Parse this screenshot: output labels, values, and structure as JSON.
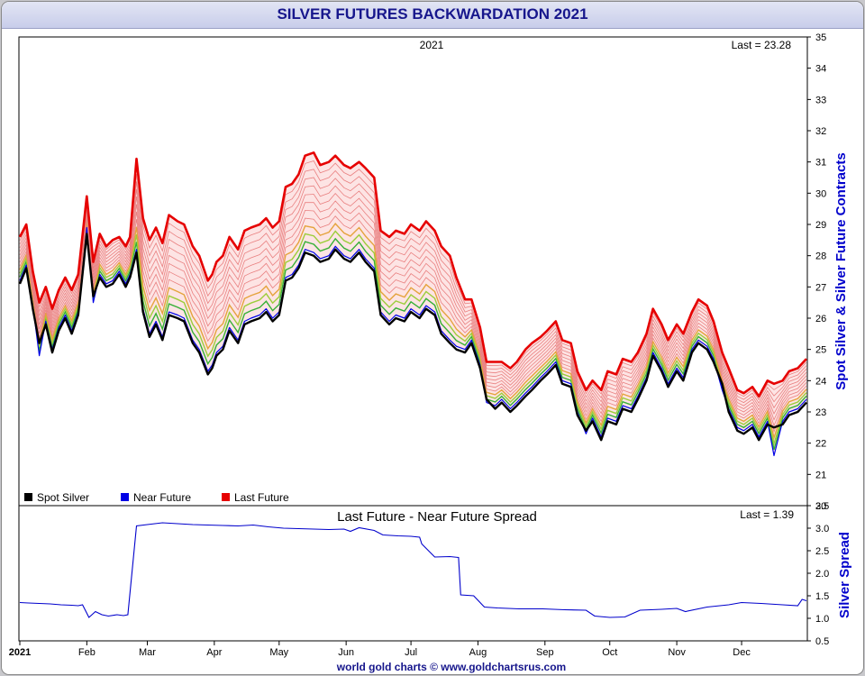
{
  "title": "SILVER FUTURES BACKWARDATION 2021",
  "footer": "world gold charts © www.goldchartsrus.com",
  "colors": {
    "spot": "#000000",
    "near": "#0000e6",
    "last": "#e60000",
    "band": "#f2a8a8",
    "mid": "#e98080",
    "spread": "#0000cc",
    "title": "#16168c",
    "ylabel": "#0000cc"
  },
  "chart_data": [
    {
      "type": "line",
      "subtitle": "2021",
      "annotation": "Last = 23.28",
      "ylabel": "Spot Silver & Silver Future Contracts",
      "ylim": [
        20,
        35
      ],
      "yticks": [
        20,
        21,
        22,
        23,
        24,
        25,
        26,
        27,
        28,
        29,
        30,
        31,
        32,
        33,
        34,
        35
      ],
      "legend_position": "bottom-left",
      "x_date_range": [
        "2021-01-01",
        "2021-12-31"
      ],
      "series": [
        {
          "name": "Spot Silver",
          "x": [
            "2021-01-01",
            "2021-01-04",
            "2021-01-07",
            "2021-01-10",
            "2021-01-13",
            "2021-01-16",
            "2021-01-19",
            "2021-01-22",
            "2021-01-25",
            "2021-01-28",
            "2021-02-01",
            "2021-02-04",
            "2021-02-07",
            "2021-02-10",
            "2021-02-13",
            "2021-02-16",
            "2021-02-19",
            "2021-02-21",
            "2021-02-24",
            "2021-02-27",
            "2021-03-02",
            "2021-03-05",
            "2021-03-08",
            "2021-03-11",
            "2021-03-15",
            "2021-03-18",
            "2021-03-22",
            "2021-03-25",
            "2021-03-29",
            "2021-03-31",
            "2021-04-02",
            "2021-04-05",
            "2021-04-08",
            "2021-04-12",
            "2021-04-15",
            "2021-04-18",
            "2021-04-22",
            "2021-04-25",
            "2021-04-28",
            "2021-05-01",
            "2021-05-04",
            "2021-05-07",
            "2021-05-10",
            "2021-05-13",
            "2021-05-17",
            "2021-05-20",
            "2021-05-24",
            "2021-05-27",
            "2021-05-31",
            "2021-06-03",
            "2021-06-07",
            "2021-06-10",
            "2021-06-14",
            "2021-06-17",
            "2021-06-21",
            "2021-06-24",
            "2021-06-28",
            "2021-07-01",
            "2021-07-05",
            "2021-07-08",
            "2021-07-12",
            "2021-07-15",
            "2021-07-19",
            "2021-07-22",
            "2021-07-26",
            "2021-07-29",
            "2021-08-02",
            "2021-08-05",
            "2021-08-09",
            "2021-08-12",
            "2021-08-16",
            "2021-08-19",
            "2021-08-23",
            "2021-08-26",
            "2021-08-30",
            "2021-09-02",
            "2021-09-06",
            "2021-09-09",
            "2021-09-13",
            "2021-09-16",
            "2021-09-20",
            "2021-09-23",
            "2021-09-27",
            "2021-09-30",
            "2021-10-04",
            "2021-10-07",
            "2021-10-11",
            "2021-10-14",
            "2021-10-18",
            "2021-10-21",
            "2021-10-25",
            "2021-10-28",
            "2021-11-01",
            "2021-11-04",
            "2021-11-08",
            "2021-11-11",
            "2021-11-15",
            "2021-11-18",
            "2021-11-22",
            "2021-11-25",
            "2021-11-29",
            "2021-12-02",
            "2021-12-06",
            "2021-12-09",
            "2021-12-13",
            "2021-12-16",
            "2021-12-20",
            "2021-12-23",
            "2021-12-27",
            "2021-12-31"
          ],
          "values": [
            27.1,
            27.6,
            26.3,
            25.2,
            25.8,
            24.9,
            25.6,
            26.0,
            25.5,
            26.1,
            28.7,
            26.7,
            27.3,
            27.0,
            27.1,
            27.4,
            27.0,
            27.3,
            28.1,
            26.2,
            25.4,
            25.8,
            25.3,
            26.1,
            26.0,
            25.9,
            25.2,
            24.9,
            24.2,
            24.4,
            24.8,
            25.0,
            25.6,
            25.2,
            25.8,
            25.9,
            26.0,
            26.2,
            25.9,
            26.1,
            27.2,
            27.3,
            27.6,
            28.1,
            28.0,
            27.8,
            27.9,
            28.2,
            27.9,
            27.8,
            28.1,
            27.8,
            27.5,
            26.1,
            25.8,
            26.0,
            25.9,
            26.2,
            26.0,
            26.3,
            26.1,
            25.5,
            25.2,
            25.0,
            24.9,
            25.2,
            24.4,
            23.4,
            23.1,
            23.3,
            23.0,
            23.2,
            23.5,
            23.7,
            24.0,
            24.2,
            24.5,
            23.9,
            23.8,
            22.9,
            22.4,
            22.7,
            22.1,
            22.7,
            22.6,
            23.1,
            23.0,
            23.4,
            24.0,
            24.8,
            24.3,
            23.8,
            24.3,
            24.0,
            24.9,
            25.2,
            25.0,
            24.6,
            23.9,
            23.0,
            22.4,
            22.3,
            22.5,
            22.1,
            22.6,
            22.5,
            22.6,
            22.9,
            23.0,
            23.3
          ]
        },
        {
          "name": "Near Future",
          "x": [
            "2021-01-01",
            "2021-01-04",
            "2021-01-07",
            "2021-01-10",
            "2021-01-13",
            "2021-01-16",
            "2021-01-19",
            "2021-01-22",
            "2021-01-25",
            "2021-01-28",
            "2021-02-01",
            "2021-02-04",
            "2021-02-07",
            "2021-02-10",
            "2021-02-13",
            "2021-02-16",
            "2021-02-19",
            "2021-02-21",
            "2021-02-24",
            "2021-02-27",
            "2021-03-02",
            "2021-03-05",
            "2021-03-08",
            "2021-03-11",
            "2021-03-15",
            "2021-03-18",
            "2021-03-22",
            "2021-03-25",
            "2021-03-29",
            "2021-03-31",
            "2021-04-02",
            "2021-04-05",
            "2021-04-08",
            "2021-04-12",
            "2021-04-15",
            "2021-04-18",
            "2021-04-22",
            "2021-04-25",
            "2021-04-28",
            "2021-05-01",
            "2021-05-04",
            "2021-05-07",
            "2021-05-10",
            "2021-05-13",
            "2021-05-17",
            "2021-05-20",
            "2021-05-24",
            "2021-05-27",
            "2021-05-31",
            "2021-06-03",
            "2021-06-07",
            "2021-06-10",
            "2021-06-14",
            "2021-06-17",
            "2021-06-21",
            "2021-06-24",
            "2021-06-28",
            "2021-07-01",
            "2021-07-05",
            "2021-07-08",
            "2021-07-12",
            "2021-07-15",
            "2021-07-19",
            "2021-07-22",
            "2021-07-26",
            "2021-07-29",
            "2021-08-02",
            "2021-08-05",
            "2021-08-09",
            "2021-08-12",
            "2021-08-16",
            "2021-08-19",
            "2021-08-23",
            "2021-08-26",
            "2021-08-30",
            "2021-09-02",
            "2021-09-06",
            "2021-09-09",
            "2021-09-13",
            "2021-09-16",
            "2021-09-20",
            "2021-09-23",
            "2021-09-27",
            "2021-09-30",
            "2021-10-04",
            "2021-10-07",
            "2021-10-11",
            "2021-10-14",
            "2021-10-18",
            "2021-10-21",
            "2021-10-25",
            "2021-10-28",
            "2021-11-01",
            "2021-11-04",
            "2021-11-08",
            "2021-11-11",
            "2021-11-15",
            "2021-11-18",
            "2021-11-22",
            "2021-11-25",
            "2021-11-29",
            "2021-12-02",
            "2021-12-06",
            "2021-12-09",
            "2021-12-13",
            "2021-12-16",
            "2021-12-20",
            "2021-12-23",
            "2021-12-27",
            "2021-12-31"
          ],
          "values": [
            27.2,
            27.7,
            26.4,
            24.8,
            25.9,
            25.0,
            25.7,
            26.1,
            25.6,
            26.2,
            28.9,
            26.5,
            27.4,
            27.1,
            27.2,
            27.5,
            27.1,
            27.4,
            28.2,
            26.3,
            25.5,
            25.9,
            25.4,
            26.2,
            26.1,
            26.0,
            25.3,
            25.0,
            24.3,
            24.5,
            24.9,
            25.1,
            25.7,
            25.3,
            25.9,
            26.0,
            26.1,
            26.3,
            26.0,
            26.2,
            27.3,
            27.4,
            27.7,
            28.2,
            28.1,
            27.9,
            28.0,
            28.3,
            28.0,
            27.9,
            28.2,
            27.9,
            27.6,
            26.2,
            25.9,
            26.1,
            26.0,
            26.3,
            26.1,
            26.4,
            26.2,
            25.6,
            25.3,
            25.1,
            25.0,
            25.3,
            24.5,
            23.3,
            23.2,
            23.4,
            23.1,
            23.3,
            23.6,
            23.8,
            24.1,
            24.3,
            24.6,
            24.0,
            23.9,
            23.0,
            22.3,
            22.8,
            22.2,
            22.8,
            22.7,
            23.2,
            23.1,
            23.5,
            24.1,
            24.9,
            24.4,
            23.9,
            24.4,
            24.1,
            25.0,
            25.3,
            25.1,
            24.7,
            23.7,
            23.1,
            22.5,
            22.4,
            22.6,
            22.2,
            22.7,
            21.6,
            22.7,
            23.0,
            23.1,
            23.4
          ]
        },
        {
          "name": "Last Future",
          "x": [
            "2021-01-01",
            "2021-01-04",
            "2021-01-07",
            "2021-01-10",
            "2021-01-13",
            "2021-01-16",
            "2021-01-19",
            "2021-01-22",
            "2021-01-25",
            "2021-01-28",
            "2021-02-01",
            "2021-02-04",
            "2021-02-07",
            "2021-02-10",
            "2021-02-13",
            "2021-02-16",
            "2021-02-19",
            "2021-02-21",
            "2021-02-24",
            "2021-02-27",
            "2021-03-02",
            "2021-03-05",
            "2021-03-08",
            "2021-03-11",
            "2021-03-15",
            "2021-03-18",
            "2021-03-22",
            "2021-03-25",
            "2021-03-29",
            "2021-03-31",
            "2021-04-02",
            "2021-04-05",
            "2021-04-08",
            "2021-04-12",
            "2021-04-15",
            "2021-04-18",
            "2021-04-22",
            "2021-04-25",
            "2021-04-28",
            "2021-05-01",
            "2021-05-04",
            "2021-05-07",
            "2021-05-10",
            "2021-05-13",
            "2021-05-17",
            "2021-05-20",
            "2021-05-24",
            "2021-05-27",
            "2021-05-31",
            "2021-06-03",
            "2021-06-07",
            "2021-06-10",
            "2021-06-14",
            "2021-06-17",
            "2021-06-21",
            "2021-06-24",
            "2021-06-28",
            "2021-07-01",
            "2021-07-05",
            "2021-07-08",
            "2021-07-12",
            "2021-07-15",
            "2021-07-19",
            "2021-07-22",
            "2021-07-26",
            "2021-07-29",
            "2021-08-02",
            "2021-08-05",
            "2021-08-09",
            "2021-08-12",
            "2021-08-16",
            "2021-08-19",
            "2021-08-23",
            "2021-08-26",
            "2021-08-30",
            "2021-09-02",
            "2021-09-06",
            "2021-09-09",
            "2021-09-13",
            "2021-09-16",
            "2021-09-20",
            "2021-09-23",
            "2021-09-27",
            "2021-09-30",
            "2021-10-04",
            "2021-10-07",
            "2021-10-11",
            "2021-10-14",
            "2021-10-18",
            "2021-10-21",
            "2021-10-25",
            "2021-10-28",
            "2021-11-01",
            "2021-11-04",
            "2021-11-08",
            "2021-11-11",
            "2021-11-15",
            "2021-11-18",
            "2021-11-22",
            "2021-11-25",
            "2021-11-29",
            "2021-12-02",
            "2021-12-06",
            "2021-12-09",
            "2021-12-13",
            "2021-12-16",
            "2021-12-20",
            "2021-12-23",
            "2021-12-27",
            "2021-12-31"
          ],
          "values": [
            28.6,
            29.0,
            27.5,
            26.5,
            27.0,
            26.3,
            26.9,
            27.3,
            26.9,
            27.4,
            29.9,
            27.8,
            28.7,
            28.3,
            28.5,
            28.6,
            28.3,
            28.6,
            31.1,
            29.2,
            28.5,
            28.9,
            28.4,
            29.3,
            29.1,
            29.0,
            28.3,
            28.0,
            27.2,
            27.4,
            27.8,
            28.0,
            28.6,
            28.2,
            28.8,
            28.9,
            29.0,
            29.2,
            28.9,
            29.1,
            30.2,
            30.3,
            30.6,
            31.2,
            31.3,
            30.9,
            31.0,
            31.2,
            30.9,
            30.8,
            31.0,
            30.8,
            30.5,
            28.8,
            28.6,
            28.8,
            28.7,
            29.0,
            28.8,
            29.1,
            28.8,
            28.3,
            28.0,
            27.3,
            26.6,
            26.6,
            25.7,
            24.6,
            24.6,
            24.6,
            24.4,
            24.6,
            25.0,
            25.2,
            25.4,
            25.6,
            25.9,
            25.3,
            25.2,
            24.3,
            23.7,
            24.0,
            23.7,
            24.3,
            24.2,
            24.7,
            24.6,
            24.9,
            25.5,
            26.3,
            25.8,
            25.3,
            25.8,
            25.5,
            26.2,
            26.6,
            26.4,
            25.9,
            24.9,
            24.4,
            23.7,
            23.6,
            23.8,
            23.5,
            24.0,
            23.9,
            24.0,
            24.3,
            24.4,
            24.7
          ]
        }
      ]
    },
    {
      "type": "line",
      "title": "Last Future - Near Future Spread",
      "annotation": "Last = 1.39",
      "ylabel": "Silver Spread",
      "ylim": [
        0.5,
        3.5
      ],
      "yticks": [
        0.5,
        1.0,
        1.5,
        2.0,
        2.5,
        3.0,
        3.5
      ],
      "x_date_range": [
        "2021-01-01",
        "2021-12-31"
      ],
      "xtick_labels": [
        "2021",
        "Feb",
        "Mar",
        "Apr",
        "May",
        "Jun",
        "Jul",
        "Aug",
        "Sep",
        "Oct",
        "Nov",
        "Dec"
      ],
      "series": [
        {
          "x": [
            "2021-01-01",
            "2021-01-05",
            "2021-01-10",
            "2021-01-15",
            "2021-01-20",
            "2021-01-25",
            "2021-01-28",
            "2021-01-30",
            "2021-02-02",
            "2021-02-05",
            "2021-02-08",
            "2021-02-11",
            "2021-02-15",
            "2021-02-18",
            "2021-02-19",
            "2021-02-20",
            "2021-02-24",
            "2021-03-01",
            "2021-03-08",
            "2021-03-15",
            "2021-03-22",
            "2021-03-29",
            "2021-04-05",
            "2021-04-12",
            "2021-04-19",
            "2021-04-26",
            "2021-05-03",
            "2021-05-10",
            "2021-05-17",
            "2021-05-24",
            "2021-05-31",
            "2021-06-03",
            "2021-06-07",
            "2021-06-14",
            "2021-06-18",
            "2021-06-25",
            "2021-07-01",
            "2021-07-05",
            "2021-07-06",
            "2021-07-12",
            "2021-07-19",
            "2021-07-23",
            "2021-07-24",
            "2021-07-30",
            "2021-08-03",
            "2021-08-04",
            "2021-08-10",
            "2021-08-20",
            "2021-08-31",
            "2021-09-10",
            "2021-09-20",
            "2021-09-24",
            "2021-10-01",
            "2021-10-08",
            "2021-10-15",
            "2021-10-25",
            "2021-11-01",
            "2021-11-05",
            "2021-11-15",
            "2021-11-25",
            "2021-12-01",
            "2021-12-10",
            "2021-12-20",
            "2021-12-27",
            "2021-12-29",
            "2021-12-31"
          ],
          "values": [
            1.35,
            1.34,
            1.33,
            1.32,
            1.3,
            1.29,
            1.28,
            1.3,
            1.02,
            1.15,
            1.08,
            1.05,
            1.08,
            1.06,
            1.07,
            1.08,
            3.05,
            3.08,
            3.12,
            3.1,
            3.08,
            3.07,
            3.06,
            3.05,
            3.07,
            3.03,
            3.0,
            2.99,
            2.98,
            2.97,
            2.98,
            2.93,
            3.01,
            2.95,
            2.85,
            2.83,
            2.82,
            2.8,
            2.65,
            2.36,
            2.37,
            2.35,
            1.52,
            1.5,
            1.3,
            1.25,
            1.23,
            1.21,
            1.21,
            1.19,
            1.18,
            1.05,
            1.02,
            1.03,
            1.18,
            1.2,
            1.22,
            1.15,
            1.25,
            1.3,
            1.35,
            1.33,
            1.3,
            1.28,
            1.42,
            1.39
          ]
        }
      ]
    }
  ]
}
